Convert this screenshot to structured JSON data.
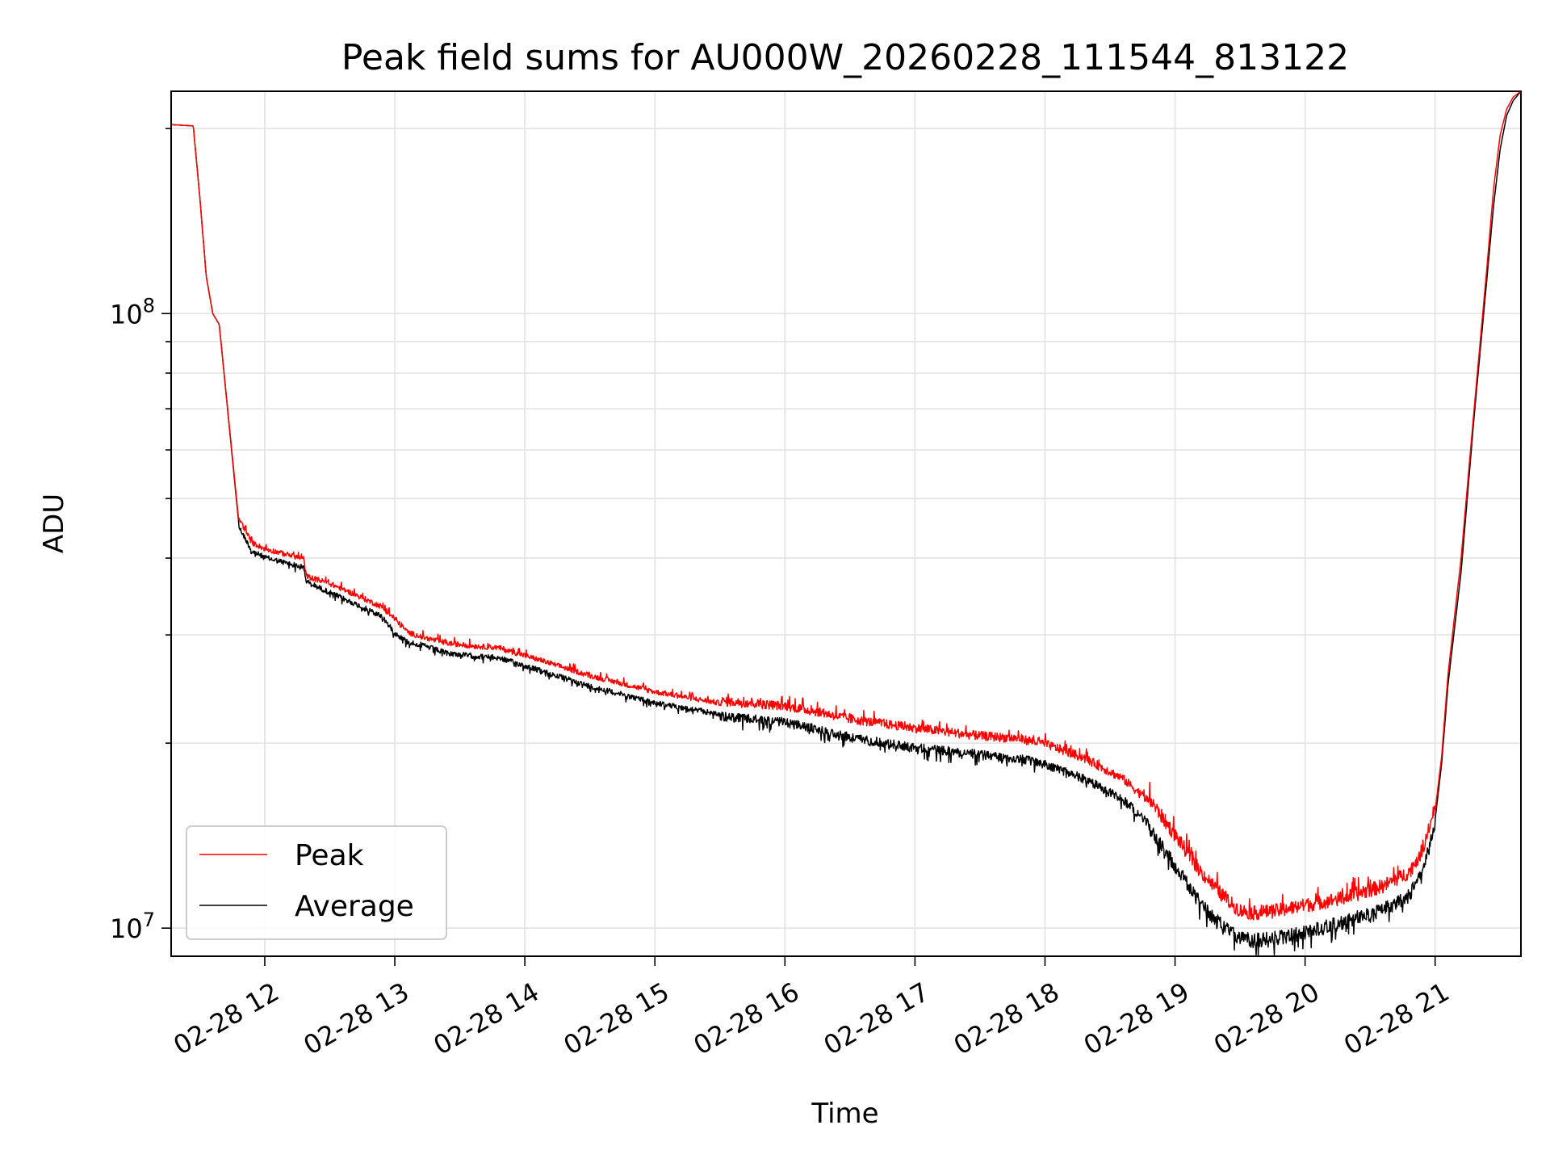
{
  "chart_data": {
    "type": "line",
    "title": "Peak field sums for AU000W_20260228_111544_813122",
    "xlabel": "Time",
    "ylabel": "ADU",
    "yscale": "log",
    "ylim": [
      9000000,
      230000000
    ],
    "xlim_hours": [
      11.28,
      21.66
    ],
    "grid": true,
    "legend_position": "lower-left",
    "x_ticks": [
      {
        "hour": 12,
        "label": "02-28 12"
      },
      {
        "hour": 13,
        "label": "02-28 13"
      },
      {
        "hour": 14,
        "label": "02-28 14"
      },
      {
        "hour": 15,
        "label": "02-28 15"
      },
      {
        "hour": 16,
        "label": "02-28 16"
      },
      {
        "hour": 17,
        "label": "02-28 17"
      },
      {
        "hour": 18,
        "label": "02-28 18"
      },
      {
        "hour": 19,
        "label": "02-28 19"
      },
      {
        "hour": 20,
        "label": "02-28 20"
      },
      {
        "hour": 21,
        "label": "02-28 21"
      }
    ],
    "y_major_ticks": [
      {
        "value": 10000000,
        "base": "10",
        "exp": "7"
      },
      {
        "value": 100000000,
        "base": "10",
        "exp": "8"
      }
    ],
    "y_minor_ticks": [
      20000000,
      30000000,
      40000000,
      50000000,
      60000000,
      70000000,
      80000000,
      90000000,
      200000000
    ],
    "series": [
      {
        "name": "Peak",
        "color": "#ff0000",
        "noise_direction": "up",
        "x_hours": [
          11.28,
          11.45,
          11.5,
          11.55,
          11.6,
          11.65,
          11.8,
          11.9,
          12.0,
          12.1,
          12.2,
          12.3,
          12.32,
          12.5,
          12.7,
          12.9,
          13.0,
          13.1,
          13.2,
          13.4,
          13.6,
          13.8,
          14.0,
          14.5,
          15.0,
          15.5,
          16.0,
          16.3,
          16.5,
          17.0,
          17.5,
          17.8,
          18.0,
          18.3,
          18.6,
          18.8,
          19.0,
          19.2,
          19.4,
          19.5,
          19.6,
          19.8,
          20.0,
          20.3,
          20.6,
          20.8,
          20.9,
          21.0,
          21.05,
          21.1,
          21.2,
          21.3,
          21.4,
          21.45,
          21.5,
          21.55,
          21.6,
          21.66
        ],
        "y_values": [
          203000000,
          202000000,
          155000000,
          115000000,
          100000000,
          96000000,
          46000000,
          42000000,
          41000000,
          40500000,
          40000000,
          39500000,
          37000000,
          36000000,
          34500000,
          33000000,
          31500000,
          30000000,
          29500000,
          28800000,
          28500000,
          28300000,
          27500000,
          25500000,
          24000000,
          23000000,
          22600000,
          22000000,
          21500000,
          20800000,
          20200000,
          20000000,
          19600000,
          18600000,
          17200000,
          15800000,
          13800000,
          12000000,
          10800000,
          10400000,
          10300000,
          10400000,
          10600000,
          10900000,
          11400000,
          12000000,
          13000000,
          15500000,
          19000000,
          26000000,
          40000000,
          70000000,
          120000000,
          160000000,
          195000000,
          215000000,
          225000000,
          230000000
        ]
      },
      {
        "name": "Average",
        "color": "#000000",
        "noise_direction": "down",
        "x_hours": [
          11.28,
          11.45,
          11.5,
          11.55,
          11.6,
          11.65,
          11.8,
          11.9,
          12.0,
          12.1,
          12.2,
          12.3,
          12.32,
          12.5,
          12.7,
          12.9,
          13.0,
          13.1,
          13.2,
          13.4,
          13.6,
          13.8,
          14.0,
          14.5,
          15.0,
          15.5,
          16.0,
          16.3,
          16.5,
          17.0,
          17.5,
          17.8,
          18.0,
          18.3,
          18.6,
          18.8,
          19.0,
          19.2,
          19.4,
          19.5,
          19.6,
          19.8,
          20.0,
          20.3,
          20.6,
          20.8,
          20.9,
          21.0,
          21.05,
          21.1,
          21.2,
          21.3,
          21.4,
          21.45,
          21.5,
          21.55,
          21.6,
          21.66
        ],
        "y_values": [
          203000000,
          202000000,
          155000000,
          115000000,
          100000000,
          96000000,
          45500000,
          41500000,
          40500000,
          40000000,
          39500000,
          39000000,
          37000000,
          35500000,
          34000000,
          32500000,
          30500000,
          29500000,
          29200000,
          28300000,
          28000000,
          27800000,
          27000000,
          25000000,
          23500000,
          22500000,
          22000000,
          21300000,
          20800000,
          20000000,
          19500000,
          19200000,
          18800000,
          17800000,
          16500000,
          15000000,
          13000000,
          11200000,
          10200000,
          9900000,
          9800000,
          9900000,
          10100000,
          10500000,
          11000000,
          11600000,
          12600000,
          15000000,
          18500000,
          25000000,
          38000000,
          68000000,
          115000000,
          150000000,
          185000000,
          210000000,
          222000000,
          230000000
        ]
      }
    ]
  }
}
